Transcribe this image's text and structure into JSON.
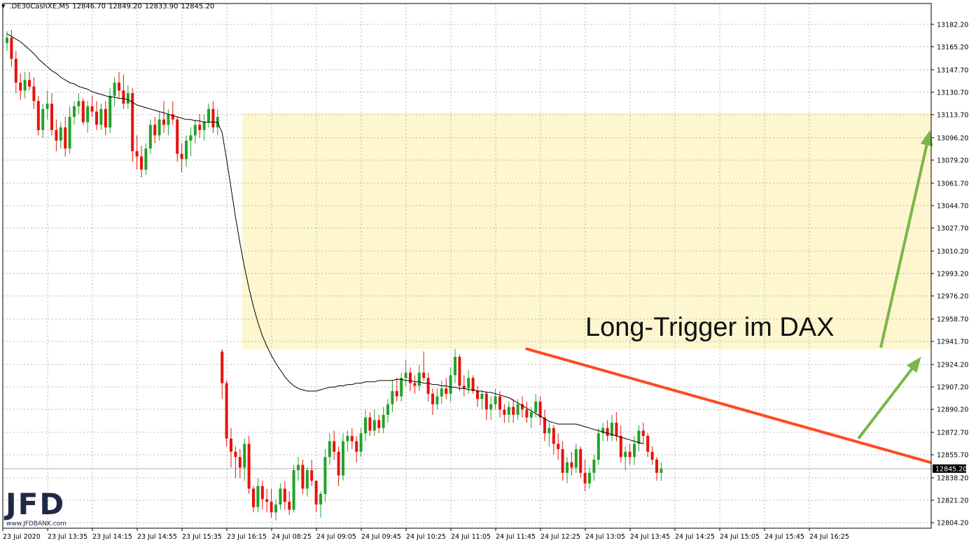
{
  "header": {
    "symbol": ".DE30CashXE,M5",
    "open": "12846.70",
    "high": "12849.20",
    "low": "12833.90",
    "close": "12845.20"
  },
  "logo": {
    "name": "JFD",
    "url": "www.JFDBANK.com"
  },
  "annotation": {
    "text": "Long-Trigger im DAX"
  },
  "colors": {
    "bull": "#22a22a",
    "bear": "#e8120c",
    "zone": "#fdf6cf",
    "trendline": "#ff4a22",
    "arrow": "#7ab648",
    "ma": "#000000",
    "grid": "#b8b8b8"
  },
  "chart_data": {
    "type": "candlestick",
    "timeframe": "M5",
    "ylim": [
      12800,
      13198
    ],
    "yticks": [
      "13182.20",
      "13165.20",
      "13147.70",
      "13130.70",
      "13113.70",
      "13096.20",
      "13079.20",
      "13061.70",
      "13044.70",
      "13027.70",
      "13010.20",
      "12993.20",
      "12976.20",
      "12958.70",
      "12941.70",
      "12924.20",
      "12907.20",
      "12890.20",
      "12872.70",
      "12855.70",
      "12838.20",
      "12821.20",
      "12804.20"
    ],
    "xticks": [
      "23 Jul 2020",
      "23 Jul 13:35",
      "23 Jul 14:15",
      "23 Jul 14:55",
      "23 Jul 15:35",
      "23 Jul 16:15",
      "24 Jul 08:25",
      "24 Jul 09:05",
      "24 Jul 09:45",
      "24 Jul 10:25",
      "24 Jul 11:05",
      "24 Jul 11:45",
      "24 Jul 12:25",
      "24 Jul 13:05",
      "24 Jul 13:45",
      "24 Jul 14:25",
      "24 Jul 15:05",
      "24 Jul 15:45",
      "24 Jul 16:25"
    ],
    "current_price": "12845.20",
    "zone": {
      "from_index": 53,
      "low": 12936,
      "high": 13115
    },
    "trendline": {
      "from_index": 116,
      "from_price": 12936,
      "to_index": 206,
      "to_price": 12850
    },
    "arrows": [
      {
        "from_index": 190,
        "from_price": 12868,
        "to_index": 204,
        "to_price": 12930
      },
      {
        "from_index": 195,
        "from_price": 12937,
        "to_index": 206,
        "to_price": 13102
      }
    ],
    "candles": [
      [
        13168,
        13177,
        13162,
        13172
      ],
      [
        13172,
        13178,
        13150,
        13156
      ],
      [
        13156,
        13162,
        13130,
        13138
      ],
      [
        13138,
        13145,
        13125,
        13132
      ],
      [
        13132,
        13146,
        13126,
        13140
      ],
      [
        13140,
        13146,
        13132,
        13135
      ],
      [
        13135,
        13142,
        13118,
        13124
      ],
      [
        13124,
        13128,
        13098,
        13102
      ],
      [
        13102,
        13122,
        13096,
        13118
      ],
      [
        13118,
        13132,
        13110,
        13122
      ],
      [
        13122,
        13130,
        13098,
        13102
      ],
      [
        13102,
        13110,
        13086,
        13094
      ],
      [
        13094,
        13108,
        13088,
        13104
      ],
      [
        13104,
        13112,
        13082,
        13088
      ],
      [
        13088,
        13120,
        13084,
        13112
      ],
      [
        13112,
        13124,
        13106,
        13120
      ],
      [
        13120,
        13130,
        13114,
        13124
      ],
      [
        13124,
        13126,
        13106,
        13108
      ],
      [
        13108,
        13124,
        13100,
        13120
      ],
      [
        13120,
        13128,
        13112,
        13116
      ],
      [
        13116,
        13124,
        13102,
        13106
      ],
      [
        13106,
        13122,
        13102,
        13118
      ],
      [
        13118,
        13124,
        13098,
        13104
      ],
      [
        13104,
        13134,
        13100,
        13128
      ],
      [
        13128,
        13142,
        13120,
        13138
      ],
      [
        13138,
        13146,
        13126,
        13132
      ],
      [
        13132,
        13144,
        13118,
        13122
      ],
      [
        13122,
        13136,
        13118,
        13130
      ],
      [
        13130,
        13134,
        13078,
        13086
      ],
      [
        13086,
        13098,
        13072,
        13082
      ],
      [
        13082,
        13090,
        13066,
        13072
      ],
      [
        13072,
        13092,
        13068,
        13088
      ],
      [
        13088,
        13110,
        13084,
        13106
      ],
      [
        13106,
        13112,
        13092,
        13098
      ],
      [
        13098,
        13116,
        13094,
        13110
      ],
      [
        13110,
        13124,
        13100,
        13106
      ],
      [
        13106,
        13118,
        13098,
        13114
      ],
      [
        13114,
        13124,
        13106,
        13110
      ],
      [
        13110,
        13112,
        13078,
        13084
      ],
      [
        13084,
        13092,
        13070,
        13080
      ],
      [
        13080,
        13098,
        13074,
        13094
      ],
      [
        13094,
        13104,
        13082,
        13098
      ],
      [
        13098,
        13110,
        13092,
        13106
      ],
      [
        13106,
        13114,
        13096,
        13102
      ],
      [
        13102,
        13114,
        13094,
        13108
      ],
      [
        13108,
        13122,
        13104,
        13118
      ],
      [
        13118,
        13124,
        13100,
        13104
      ],
      [
        13104,
        13118,
        13098,
        13112
      ],
      [
        12934,
        12936,
        12898,
        12910
      ],
      [
        12910,
        12912,
        12862,
        12868
      ],
      [
        12868,
        12876,
        12846,
        12858
      ],
      [
        12858,
        12862,
        12838,
        12854
      ],
      [
        12854,
        12860,
        12838,
        12846
      ],
      [
        12846,
        12868,
        12836,
        12864
      ],
      [
        12864,
        12870,
        12826,
        12830
      ],
      [
        12830,
        12832,
        12812,
        12816
      ],
      [
        12816,
        12838,
        12812,
        12832
      ],
      [
        12832,
        12836,
        12814,
        12822
      ],
      [
        12822,
        12830,
        12812,
        12820
      ],
      [
        12820,
        12830,
        12808,
        12812
      ],
      [
        12812,
        12822,
        12806,
        12818
      ],
      [
        12818,
        12834,
        12814,
        12830
      ],
      [
        12830,
        12836,
        12814,
        12820
      ],
      [
        12820,
        12828,
        12810,
        12814
      ],
      [
        12814,
        12848,
        12812,
        12844
      ],
      [
        12844,
        12854,
        12836,
        12848
      ],
      [
        12848,
        12852,
        12826,
        12830
      ],
      [
        12830,
        12846,
        12824,
        12844
      ],
      [
        12844,
        12852,
        12832,
        12836
      ],
      [
        12836,
        12836,
        12812,
        12818
      ],
      [
        12818,
        12828,
        12808,
        12826
      ],
      [
        12826,
        12860,
        12820,
        12854
      ],
      [
        12854,
        12872,
        12848,
        12866
      ],
      [
        12866,
        12874,
        12852,
        12858
      ],
      [
        12858,
        12862,
        12832,
        12840
      ],
      [
        12840,
        12872,
        12836,
        12866
      ],
      [
        12866,
        12874,
        12858,
        12870
      ],
      [
        12870,
        12876,
        12860,
        12866
      ],
      [
        12866,
        12870,
        12850,
        12858
      ],
      [
        12858,
        12876,
        12854,
        12872
      ],
      [
        12872,
        12890,
        12866,
        12884
      ],
      [
        12884,
        12888,
        12870,
        12874
      ],
      [
        12874,
        12890,
        12870,
        12882
      ],
      [
        12882,
        12886,
        12872,
        12876
      ],
      [
        12876,
        12892,
        12872,
        12886
      ],
      [
        12886,
        12898,
        12880,
        12894
      ],
      [
        12894,
        12912,
        12888,
        12904
      ],
      [
        12904,
        12914,
        12896,
        12900
      ],
      [
        12900,
        12918,
        12896,
        12914
      ],
      [
        12914,
        12928,
        12908,
        12918
      ],
      [
        12918,
        12922,
        12904,
        12910
      ],
      [
        12910,
        12916,
        12902,
        12908
      ],
      [
        12908,
        12924,
        12904,
        12918
      ],
      [
        12918,
        12934,
        12912,
        12914
      ],
      [
        12914,
        12918,
        12896,
        12902
      ],
      [
        12902,
        12906,
        12886,
        12894
      ],
      [
        12894,
        12906,
        12890,
        12900
      ],
      [
        12900,
        12912,
        12894,
        12906
      ],
      [
        12906,
        12914,
        12898,
        12902
      ],
      [
        12902,
        12922,
        12896,
        12916
      ],
      [
        12916,
        12936,
        12910,
        12930
      ],
      [
        12930,
        12932,
        12904,
        12908
      ],
      [
        12908,
        12916,
        12900,
        12906
      ],
      [
        12906,
        12920,
        12902,
        12914
      ],
      [
        12914,
        12916,
        12902,
        12904
      ],
      [
        12904,
        12908,
        12892,
        12898
      ],
      [
        12898,
        12904,
        12890,
        12902
      ],
      [
        12902,
        12904,
        12882,
        12890
      ],
      [
        12890,
        12900,
        12882,
        12894
      ],
      [
        12894,
        12906,
        12890,
        12900
      ],
      [
        12900,
        12904,
        12884,
        12890
      ],
      [
        12890,
        12894,
        12880,
        12886
      ],
      [
        12886,
        12896,
        12880,
        12892
      ],
      [
        12892,
        12898,
        12880,
        12886
      ],
      [
        12886,
        12898,
        12882,
        12894
      ],
      [
        12894,
        12900,
        12884,
        12890
      ],
      [
        12890,
        12896,
        12880,
        12884
      ],
      [
        12884,
        12892,
        12876,
        12888
      ],
      [
        12888,
        12902,
        12884,
        12896
      ],
      [
        12896,
        12900,
        12878,
        12884
      ],
      [
        12884,
        12890,
        12866,
        12872
      ],
      [
        12872,
        12880,
        12862,
        12876
      ],
      [
        12876,
        12878,
        12856,
        12864
      ],
      [
        12864,
        12872,
        12852,
        12860
      ],
      [
        12860,
        12866,
        12836,
        12842
      ],
      [
        12842,
        12854,
        12834,
        12850
      ],
      [
        12850,
        12858,
        12840,
        12846
      ],
      [
        12846,
        12864,
        12842,
        12860
      ],
      [
        12860,
        12862,
        12838,
        12842
      ],
      [
        12842,
        12852,
        12828,
        12834
      ],
      [
        12834,
        12846,
        12830,
        12842
      ],
      [
        12842,
        12856,
        12836,
        12852
      ],
      [
        12852,
        12876,
        12848,
        12872
      ],
      [
        12872,
        12880,
        12866,
        12876
      ],
      [
        12876,
        12882,
        12866,
        12870
      ],
      [
        12870,
        12886,
        12866,
        12880
      ],
      [
        12880,
        12888,
        12866,
        12870
      ],
      [
        12870,
        12878,
        12850,
        12854
      ],
      [
        12854,
        12862,
        12844,
        12858
      ],
      [
        12858,
        12864,
        12848,
        12854
      ],
      [
        12854,
        12870,
        12848,
        12864
      ],
      [
        12864,
        12878,
        12858,
        12874
      ],
      [
        12874,
        12880,
        12864,
        12870
      ],
      [
        12870,
        12872,
        12854,
        12858
      ],
      [
        12858,
        12862,
        12848,
        12852
      ],
      [
        12852,
        12854,
        12836,
        12842
      ],
      [
        12842,
        12850,
        12836,
        12845
      ]
    ],
    "ma": [
      13175,
      13173,
      13171,
      13169,
      13166,
      13163,
      13160,
      13156,
      13153,
      13150,
      13147,
      13145,
      13142,
      13140,
      13138,
      13137,
      13135,
      13134,
      13133,
      13131,
      13130,
      13129,
      13128,
      13127,
      13127,
      13126,
      13126,
      13125,
      13123,
      13121,
      13120,
      13119,
      13118,
      13117,
      13116,
      13115,
      13114,
      13113,
      13112,
      13111,
      13110,
      13110,
      13109,
      13109,
      13108,
      13108,
      13108,
      13108,
      13100,
      13080,
      13058,
      13036,
      13016,
      12998,
      12982,
      12968,
      12956,
      12946,
      12938,
      12931,
      12925,
      12920,
      12915,
      12911,
      12908,
      12906,
      12905,
      12904,
      12904,
      12904,
      12905,
      12906,
      12907,
      12907,
      12908,
      12908,
      12909,
      12909,
      12910,
      12910,
      12911,
      12911,
      12911,
      12912,
      12912,
      12912,
      12912,
      12913,
      12913,
      12912,
      12912,
      12911,
      12911,
      12910,
      12910,
      12909,
      12909,
      12908,
      12908,
      12907,
      12907,
      12906,
      12906,
      12905,
      12905,
      12904,
      12904,
      12903,
      12903,
      12902,
      12901,
      12900,
      12899,
      12897,
      12895,
      12893,
      12891,
      12889,
      12887,
      12885,
      12883,
      12881,
      12880,
      12879,
      12879,
      12879,
      12879,
      12879,
      12878,
      12877,
      12876,
      12875,
      12874,
      12873,
      12872,
      12871,
      12870,
      12869,
      12868,
      12867,
      12866,
      12865,
      12864
    ]
  }
}
